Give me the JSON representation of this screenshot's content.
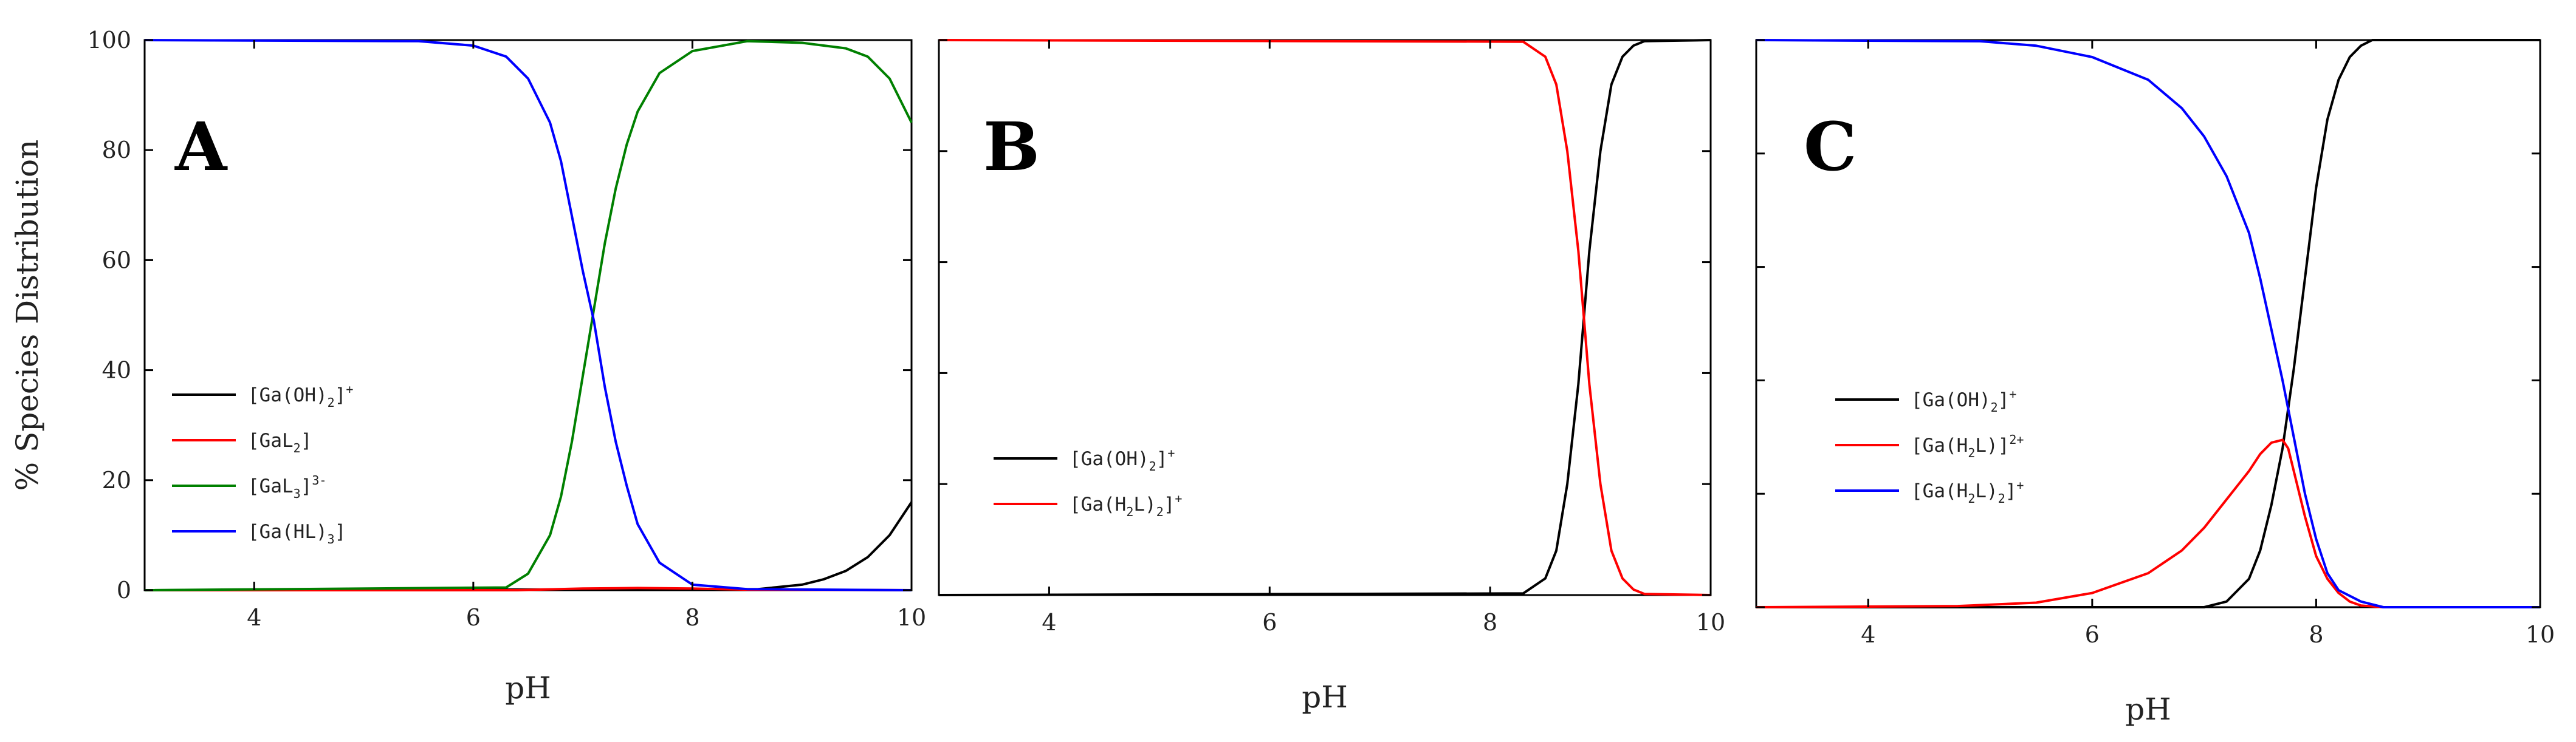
{
  "chart_data": [
    {
      "type": "line",
      "panel_label": "A",
      "xlabel": "pH",
      "ylabel": "% Species Distribution",
      "xlim": [
        3,
        10
      ],
      "ylim": [
        0,
        100
      ],
      "xticks": [
        4,
        6,
        8,
        10
      ],
      "yticks": [
        0,
        20,
        40,
        60,
        80,
        100
      ],
      "legend_position": "center-left",
      "series": [
        {
          "name": "[Ga(OH)2]+",
          "color": "#000000",
          "x": [
            3,
            8.6,
            9.0,
            9.2,
            9.4,
            9.6,
            9.8,
            10.0
          ],
          "y": [
            0,
            0.2,
            1,
            2,
            3.5,
            6,
            10,
            16
          ]
        },
        {
          "name": "[GaL2]",
          "color": "#ff0000",
          "x": [
            3,
            6.4,
            7.0,
            7.5,
            8.0,
            8.5,
            10.0
          ],
          "y": [
            0,
            0,
            0.3,
            0.4,
            0.3,
            0.1,
            0
          ]
        },
        {
          "name": "[GaL3]3-",
          "color": "#008000",
          "x": [
            3,
            6.3,
            6.5,
            6.7,
            6.8,
            6.9,
            7.0,
            7.1,
            7.2,
            7.3,
            7.4,
            7.5,
            7.7,
            8.0,
            8.5,
            9.0,
            9.4,
            9.6,
            9.8,
            10.0
          ],
          "y": [
            0,
            0.5,
            3,
            10,
            17,
            27,
            39,
            51,
            63,
            73,
            81,
            87,
            94,
            98,
            99.8,
            99.5,
            98.5,
            97,
            93,
            85
          ]
        },
        {
          "name": "[Ga(HL)3]",
          "color": "#0000ff",
          "x": [
            3,
            5.5,
            6.0,
            6.3,
            6.5,
            6.7,
            6.8,
            6.9,
            7.0,
            7.1,
            7.2,
            7.3,
            7.4,
            7.5,
            7.7,
            8.0,
            8.5,
            10.0
          ],
          "y": [
            100,
            99.8,
            99,
            97,
            93,
            85,
            78,
            68,
            58,
            49,
            37,
            27,
            19,
            12,
            5,
            1,
            0.2,
            0
          ]
        }
      ],
      "legend_parts": [
        [
          [
            "[Ga(OH)",
            false
          ],
          [
            "2",
            true
          ],
          [
            "]",
            false
          ],
          [
            "+",
            "sup"
          ]
        ],
        [
          [
            "[GaL",
            false
          ],
          [
            "2",
            true
          ],
          [
            "]",
            false
          ]
        ],
        [
          [
            "[GaL",
            false
          ],
          [
            "3",
            true
          ],
          [
            "]",
            false
          ],
          [
            "3-",
            "sup"
          ]
        ],
        [
          [
            "[Ga(HL)",
            false
          ],
          [
            "3",
            true
          ],
          [
            "]",
            false
          ]
        ]
      ]
    },
    {
      "type": "line",
      "panel_label": "B",
      "xlabel": "pH",
      "ylabel": "",
      "xlim": [
        3,
        10
      ],
      "ylim": [
        0,
        100
      ],
      "xticks": [
        4,
        6,
        8,
        10
      ],
      "legend_position": "center-left",
      "series": [
        {
          "name": "[Ga(OH)2]+",
          "color": "#000000",
          "x": [
            3,
            8.3,
            8.5,
            8.6,
            8.7,
            8.8,
            8.85,
            8.9,
            9.0,
            9.1,
            9.2,
            9.3,
            9.4,
            10.0
          ],
          "y": [
            0,
            0.3,
            3,
            8,
            20,
            38,
            50,
            62,
            80,
            92,
            97,
            99,
            99.8,
            100
          ]
        },
        {
          "name": "[Ga(H2L)2]+",
          "color": "#ff0000",
          "x": [
            3,
            8.3,
            8.5,
            8.6,
            8.7,
            8.8,
            8.85,
            8.9,
            9.0,
            9.1,
            9.2,
            9.3,
            9.4,
            10.0
          ],
          "y": [
            100,
            99.7,
            97,
            92,
            80,
            62,
            50,
            38,
            20,
            8,
            3,
            1,
            0.2,
            0
          ]
        }
      ],
      "legend_parts": [
        [
          [
            "[Ga(OH)",
            false
          ],
          [
            "2",
            true
          ],
          [
            "]",
            false
          ],
          [
            "+",
            "sup"
          ]
        ],
        [
          [
            "[Ga(H",
            false
          ],
          [
            "2",
            true
          ],
          [
            "L)",
            false
          ],
          [
            "2",
            true
          ],
          [
            "]",
            false
          ],
          [
            "+",
            "sup"
          ]
        ]
      ]
    },
    {
      "type": "line",
      "panel_label": "C",
      "xlabel": "pH",
      "ylabel": "",
      "xlim": [
        3,
        10
      ],
      "ylim": [
        0,
        100
      ],
      "xticks": [
        4,
        6,
        8,
        10
      ],
      "legend_position": "center-left",
      "series": [
        {
          "name": "[Ga(OH)2]+",
          "color": "#000000",
          "x": [
            3,
            7.0,
            7.2,
            7.4,
            7.5,
            7.6,
            7.7,
            7.8,
            7.9,
            8.0,
            8.1,
            8.2,
            8.3,
            8.4,
            8.5,
            10.0
          ],
          "y": [
            0,
            0,
            1,
            5,
            10,
            18,
            28,
            42,
            58,
            74,
            86,
            93,
            97,
            99,
            100,
            100
          ]
        },
        {
          "name": "[Ga(H2L)]2+",
          "color": "#ff0000",
          "x": [
            3,
            4.8,
            5.5,
            6.0,
            6.5,
            6.8,
            7.0,
            7.2,
            7.4,
            7.5,
            7.6,
            7.7,
            7.75,
            7.8,
            7.9,
            8.0,
            8.1,
            8.2,
            8.3,
            8.4,
            8.6,
            10.0
          ],
          "y": [
            0,
            0.2,
            0.8,
            2.5,
            6,
            10,
            14,
            19,
            24,
            27,
            29,
            29.5,
            28,
            24,
            16,
            9,
            5,
            2.5,
            1,
            0.3,
            0,
            0
          ]
        },
        {
          "name": "[Ga(H2L)2]+",
          "color": "#0000ff",
          "x": [
            3,
            5.0,
            5.5,
            6.0,
            6.5,
            6.8,
            7.0,
            7.2,
            7.4,
            7.5,
            7.6,
            7.7,
            7.8,
            7.9,
            8.0,
            8.1,
            8.2,
            8.4,
            8.6,
            10.0
          ],
          "y": [
            100,
            99.8,
            99,
            97,
            93,
            88,
            83,
            76,
            66,
            58,
            49,
            40,
            30,
            20,
            12,
            6,
            3,
            1,
            0,
            0
          ]
        }
      ],
      "legend_parts": [
        [
          [
            "[Ga(OH)",
            false
          ],
          [
            "2",
            true
          ],
          [
            "]",
            false
          ],
          [
            "+",
            "sup"
          ]
        ],
        [
          [
            "[Ga(H",
            false
          ],
          [
            "2",
            true
          ],
          [
            "L)]",
            false
          ],
          [
            "2+",
            "sup"
          ]
        ],
        [
          [
            "[Ga(H",
            false
          ],
          [
            "2",
            true
          ],
          [
            "L)",
            false
          ],
          [
            "2",
            true
          ],
          [
            "]",
            false
          ],
          [
            "+",
            "sup"
          ]
        ]
      ]
    }
  ]
}
